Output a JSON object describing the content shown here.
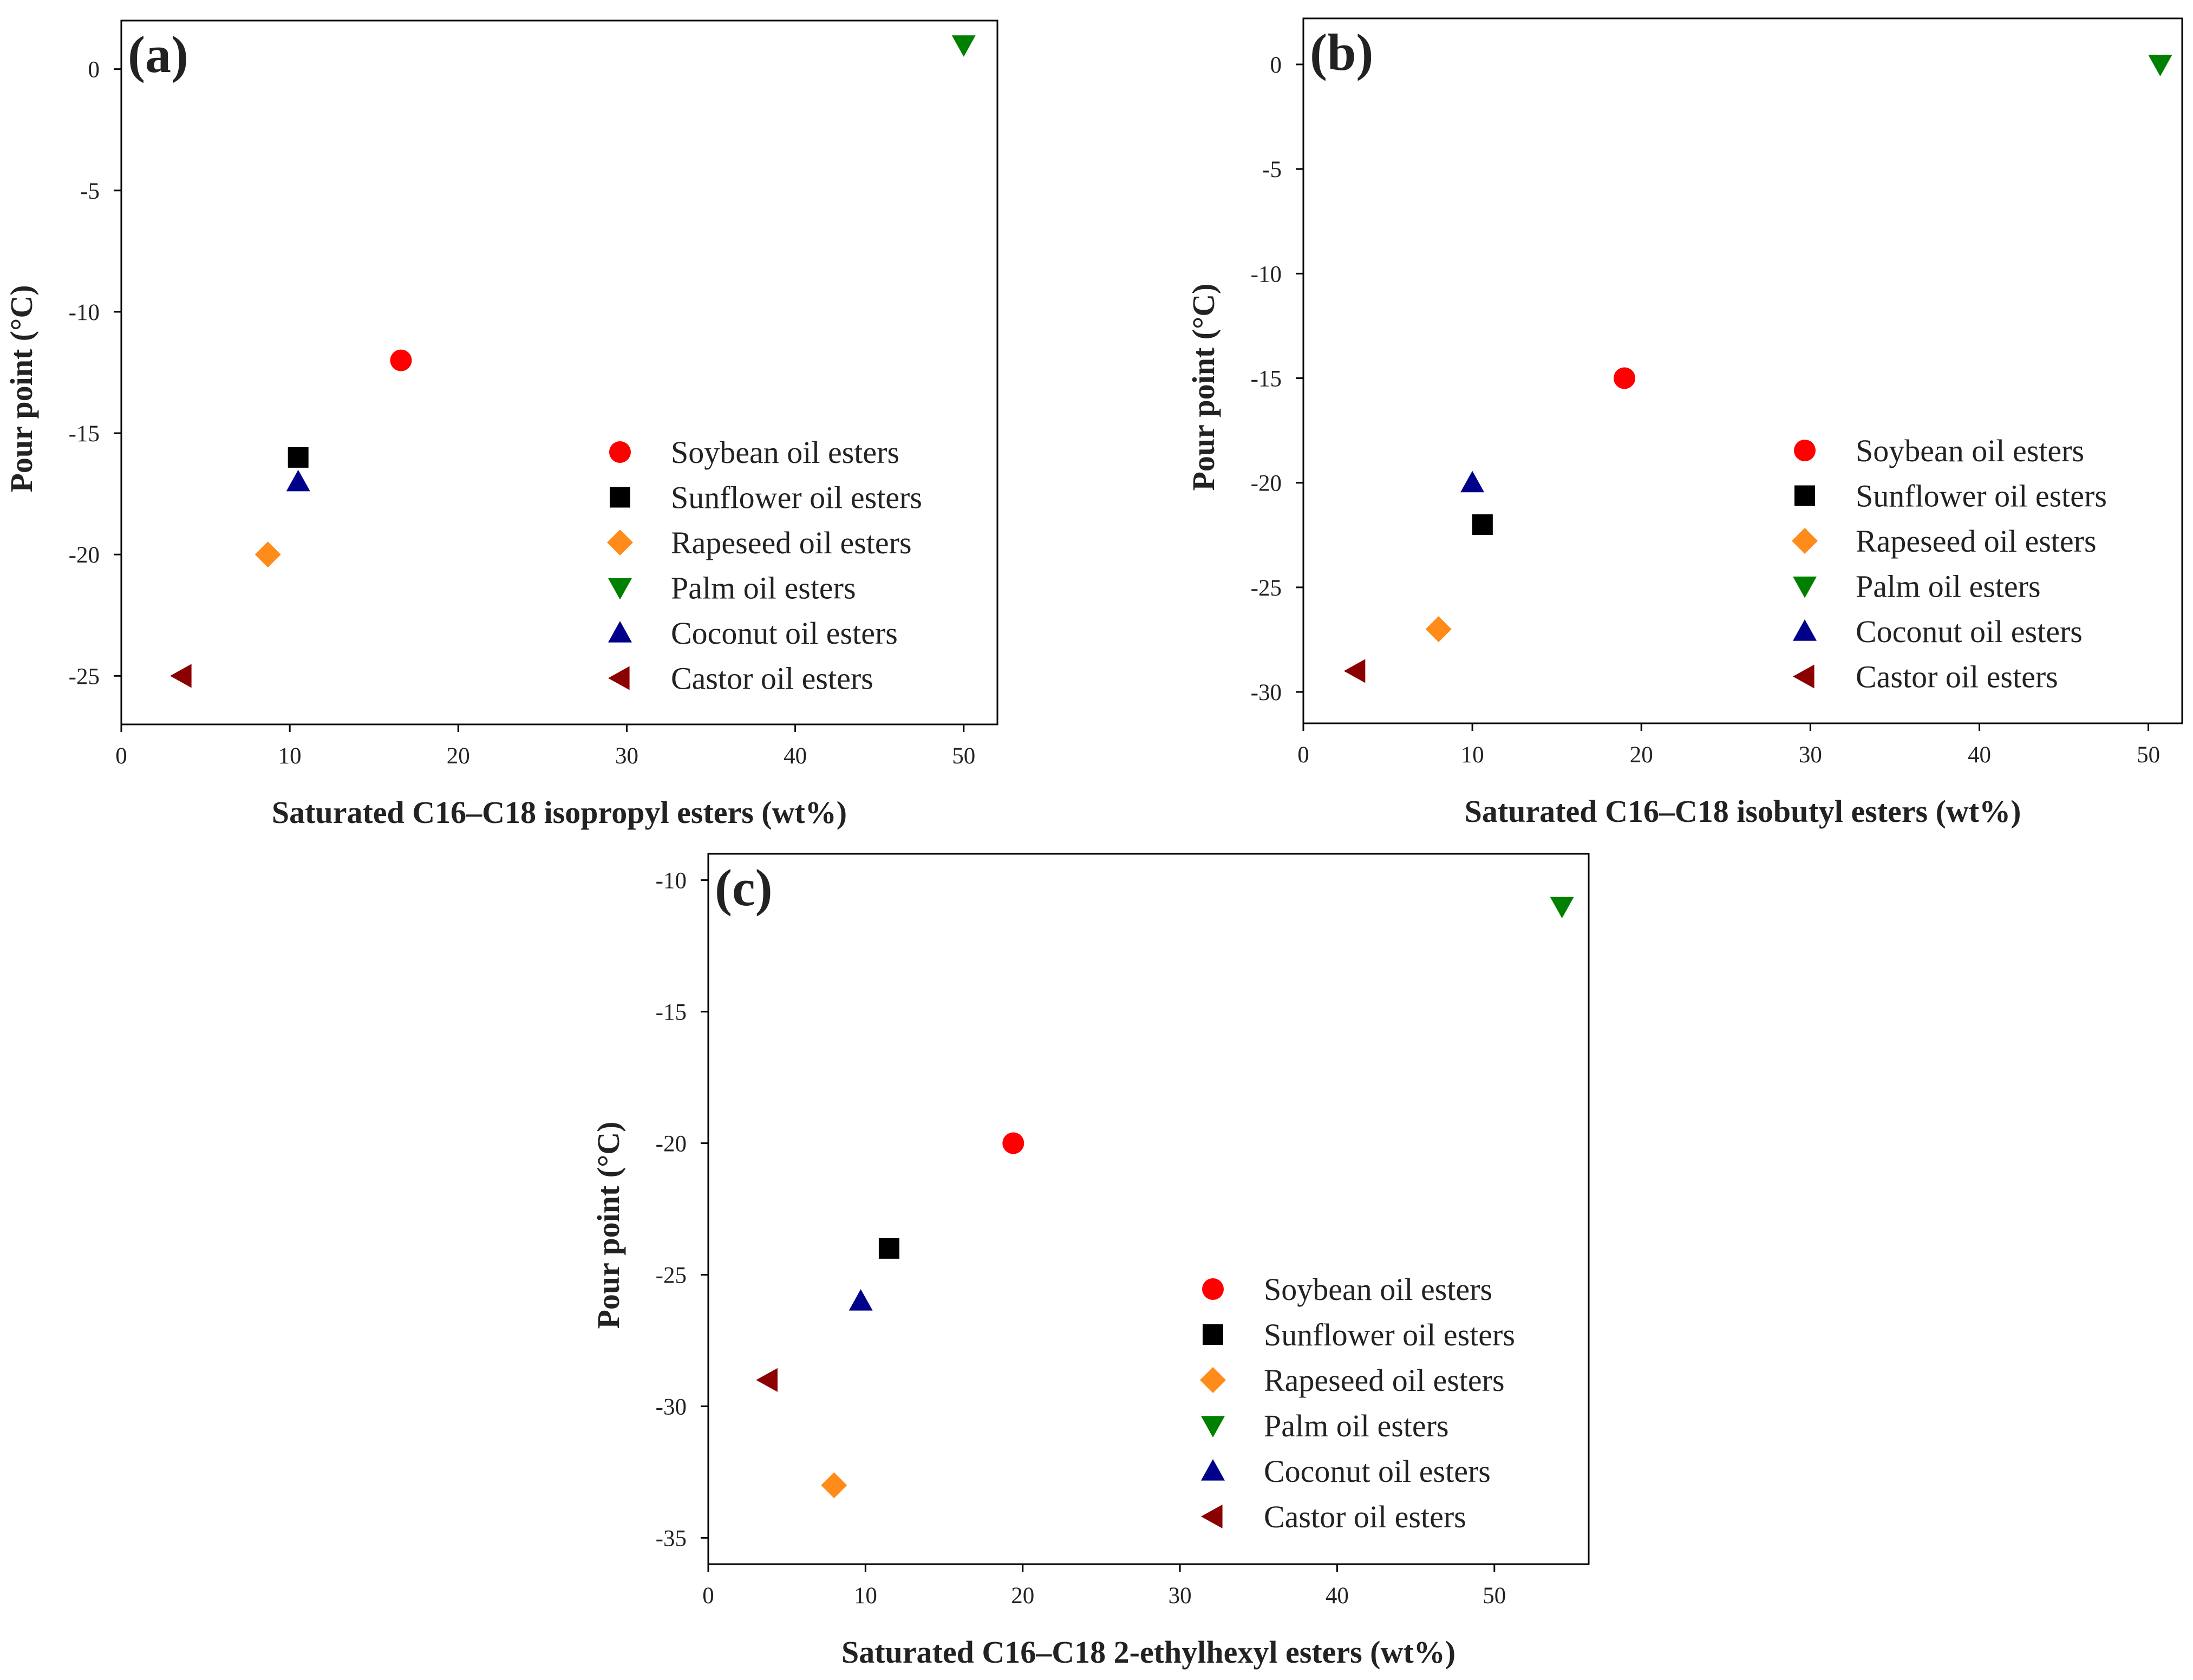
{
  "colors": {
    "soybean": "#ff0000",
    "sunflower": "#000000",
    "rapeseed": "#ff8c1a",
    "palm": "#008000",
    "coconut": "#00008b",
    "castor": "#8b0000"
  },
  "chart_data": [
    {
      "type": "scatter",
      "panel_label": "(a)",
      "xlabel": "Saturated C16–C18 isopropyl esters (wt%)",
      "ylabel": "Pour point (°C)",
      "xlim": [
        0,
        52
      ],
      "ylim": [
        -27,
        2
      ],
      "xticks": [
        0,
        10,
        20,
        30,
        40,
        50
      ],
      "yticks": [
        0,
        -5,
        -10,
        -15,
        -20,
        -25
      ],
      "legend_position": "lower-right",
      "series": [
        {
          "name": "Soybean oil esters",
          "marker": "circle",
          "color_key": "soybean",
          "x": 16.6,
          "y": -12
        },
        {
          "name": "Sunflower oil esters",
          "marker": "square",
          "color_key": "sunflower",
          "x": 10.5,
          "y": -16
        },
        {
          "name": "Rapeseed oil esters",
          "marker": "diamond",
          "color_key": "rapeseed",
          "x": 8.7,
          "y": -20
        },
        {
          "name": "Palm oil esters",
          "marker": "triangle-down",
          "color_key": "palm",
          "x": 50,
          "y": 1
        },
        {
          "name": "Coconut oil esters",
          "marker": "triangle-up",
          "color_key": "coconut",
          "x": 10.5,
          "y": -17
        },
        {
          "name": "Castor oil esters",
          "marker": "triangle-left",
          "color_key": "castor",
          "x": 3.6,
          "y": -25
        }
      ]
    },
    {
      "type": "scatter",
      "panel_label": "(b)",
      "xlabel": "Saturated C16–C18 isobutyl esters (wt%)",
      "ylabel": "Pour point (°C)",
      "xlim": [
        0,
        52
      ],
      "ylim": [
        -31.5,
        2.2
      ],
      "xticks": [
        0,
        10,
        20,
        30,
        40,
        50
      ],
      "yticks": [
        0,
        -5,
        -10,
        -15,
        -20,
        -25,
        -30
      ],
      "legend_position": "lower-right",
      "series": [
        {
          "name": "Soybean oil esters",
          "marker": "circle",
          "color_key": "soybean",
          "x": 19,
          "y": -15
        },
        {
          "name": "Sunflower oil esters",
          "marker": "square",
          "color_key": "sunflower",
          "x": 10.6,
          "y": -22
        },
        {
          "name": "Rapeseed oil esters",
          "marker": "diamond",
          "color_key": "rapeseed",
          "x": 8,
          "y": -27
        },
        {
          "name": "Palm oil esters",
          "marker": "triangle-down",
          "color_key": "palm",
          "x": 50.7,
          "y": 0
        },
        {
          "name": "Coconut oil esters",
          "marker": "triangle-up",
          "color_key": "coconut",
          "x": 10,
          "y": -20
        },
        {
          "name": "Castor oil esters",
          "marker": "triangle-left",
          "color_key": "castor",
          "x": 3.1,
          "y": -29
        }
      ]
    },
    {
      "type": "scatter",
      "panel_label": "(c)",
      "xlabel": "Saturated C16–C18 2-ethylhexyl esters (wt%)",
      "ylabel": "Pour point (°C)",
      "xlim": [
        0,
        56
      ],
      "ylim": [
        -36,
        -9
      ],
      "xticks": [
        0,
        10,
        20,
        30,
        40,
        50
      ],
      "yticks": [
        -10,
        -15,
        -20,
        -25,
        -30,
        -35
      ],
      "legend_position": "lower-right",
      "series": [
        {
          "name": "Soybean oil esters",
          "marker": "circle",
          "color_key": "soybean",
          "x": 19.4,
          "y": -20
        },
        {
          "name": "Sunflower oil esters",
          "marker": "square",
          "color_key": "sunflower",
          "x": 11.5,
          "y": -24
        },
        {
          "name": "Rapeseed oil esters",
          "marker": "diamond",
          "color_key": "rapeseed",
          "x": 8,
          "y": -33
        },
        {
          "name": "Palm oil esters",
          "marker": "triangle-down",
          "color_key": "palm",
          "x": 54.3,
          "y": -11
        },
        {
          "name": "Coconut oil esters",
          "marker": "triangle-up",
          "color_key": "coconut",
          "x": 9.7,
          "y": -26
        },
        {
          "name": "Castor oil esters",
          "marker": "triangle-left",
          "color_key": "castor",
          "x": 3.8,
          "y": -29
        }
      ]
    }
  ]
}
